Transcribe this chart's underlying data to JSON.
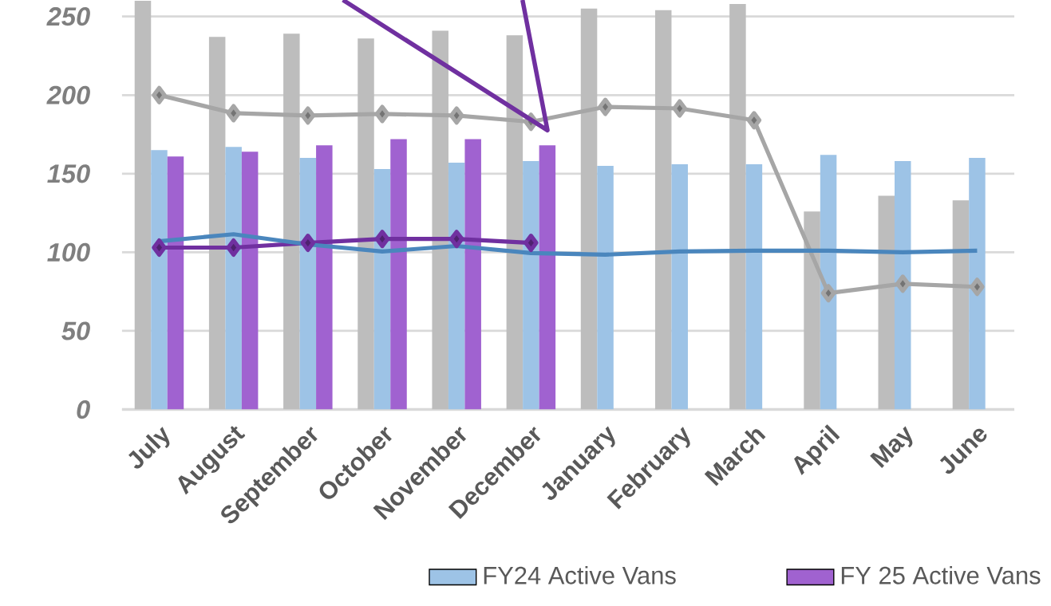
{
  "chart_data": {
    "type": "bar",
    "categories": [
      "July",
      "August",
      "September",
      "October",
      "November",
      "December",
      "January",
      "February",
      "March",
      "April",
      "May",
      "June"
    ],
    "series": [
      {
        "type": "bar",
        "color": "#bdbdbd",
        "values": [
          260,
          237,
          239,
          236,
          241,
          238,
          255,
          254,
          258,
          126,
          136,
          133
        ]
      },
      {
        "type": "bar",
        "name": "FY24 Active Vans",
        "color": "#9dc3e6",
        "values": [
          165,
          167,
          160,
          153,
          157,
          158,
          155,
          156,
          156,
          162,
          158,
          160
        ]
      },
      {
        "type": "bar",
        "name": "FY 25 Active Vans",
        "color": "#a062d0",
        "values": [
          161,
          164,
          168,
          172,
          172,
          168,
          null,
          null,
          null,
          null,
          null,
          null
        ]
      },
      {
        "type": "line",
        "color": "#a6a6a6",
        "marker": "diamond",
        "values": [
          200,
          188.5,
          187,
          188,
          187,
          183,
          192.5,
          191.5,
          184,
          74,
          80,
          78
        ]
      },
      {
        "type": "line",
        "color": "#7030a0",
        "marker": "diamond",
        "values": [
          103,
          103,
          106,
          108.5,
          108.5,
          106,
          null,
          null,
          null,
          null,
          null,
          null
        ]
      },
      {
        "type": "line",
        "color": "#4a86bd",
        "marker": "none",
        "values": [
          107,
          111.5,
          105,
          100.5,
          104,
          99.5,
          98.5,
          100.5,
          101,
          101,
          100,
          101
        ]
      }
    ],
    "ylim": [
      0,
      260
    ],
    "yticks": [
      0,
      50,
      100,
      150,
      200,
      250
    ],
    "grid": "y",
    "legend": "bottom"
  }
}
